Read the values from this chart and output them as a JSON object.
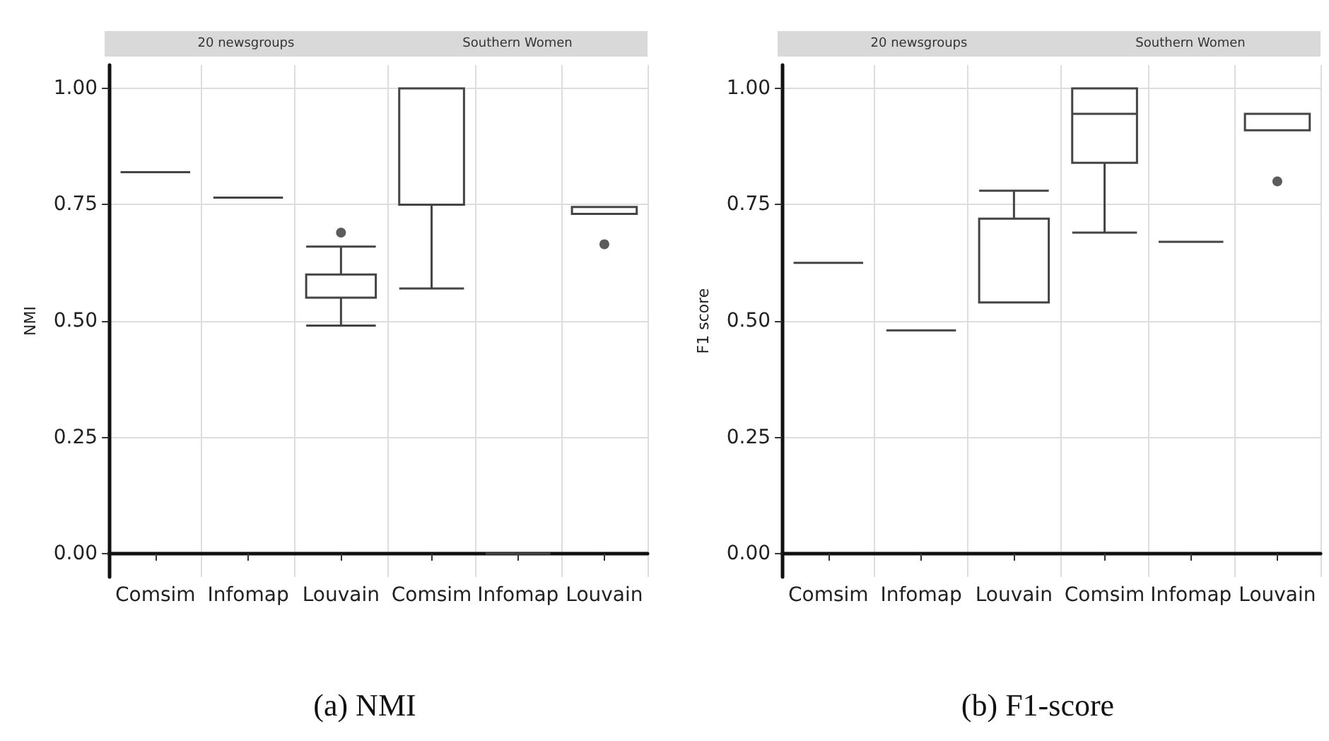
{
  "chart_data": [
    {
      "type": "box",
      "title": "20 newsgroups",
      "ylabel": "NMI",
      "categories": [
        "Comsim",
        "Infomap",
        "Louvain"
      ],
      "boxes": [
        {
          "low": 0.82,
          "q1": 0.82,
          "median": 0.82,
          "q3": 0.82,
          "high": 0.82
        },
        {
          "low": 0.765,
          "q1": 0.765,
          "median": 0.765,
          "q3": 0.765,
          "high": 0.765
        },
        {
          "low": 0.49,
          "q1": 0.55,
          "median": 0.55,
          "q3": 0.6,
          "high": 0.66,
          "outliers": [
            0.69
          ]
        }
      ],
      "ylim": [
        -0.05,
        1.05
      ],
      "yticks": [
        {
          "value": 0,
          "label": "0.00"
        },
        {
          "value": 0.25,
          "label": "0.25"
        },
        {
          "value": 0.5,
          "label": "0.50"
        },
        {
          "value": 0.75,
          "label": "0.75"
        },
        {
          "value": 1,
          "label": "1.00"
        }
      ],
      "grid": true,
      "annotations": [
        "(a) NMI"
      ]
    },
    {
      "type": "box",
      "title": "Southern Women",
      "categories": [
        "Comsim",
        "Infomap",
        "Louvain"
      ],
      "boxes": [
        {
          "low": 0.57,
          "q1": 0.75,
          "median": 0.75,
          "q3": 1.0,
          "high": 1.0
        },
        {
          "low": 0,
          "q1": 0,
          "median": 0,
          "q3": 0,
          "high": 0
        },
        {
          "low": 0.73,
          "q1": 0.73,
          "median": 0.745,
          "q3": 0.745,
          "high": 0.745,
          "outliers": [
            0.665
          ]
        }
      ],
      "ylim": [
        -0.05,
        1.05
      ],
      "yticks": [
        0,
        0.25,
        0.5,
        0.75,
        1
      ],
      "grid": true,
      "tick_labels": "x"
    },
    {
      "type": "box",
      "title": "20 newsgroups",
      "ylabel": "F1 score",
      "categories": [
        "Comsim",
        "Infomap",
        "Louvain"
      ],
      "boxes": [
        {
          "low": 0.625,
          "q1": 0.625,
          "median": 0.625,
          "q3": 0.625,
          "high": 0.625
        },
        {
          "low": 0.48,
          "q1": 0.48,
          "median": 0.48,
          "q3": 0.48,
          "high": 0.48
        },
        {
          "low": 0.54,
          "q1": 0.54,
          "median": 0.54,
          "q3": 0.72,
          "high": 0.78
        }
      ],
      "ylim": [
        -0.05,
        1.05
      ],
      "yticks": [
        {
          "value": 0,
          "label": "0.00"
        },
        {
          "value": 0.25,
          "label": "0.25"
        },
        {
          "value": 0.5,
          "label": "0.50"
        },
        {
          "value": 0.75,
          "label": "0.75"
        },
        {
          "value": 1,
          "label": "1.00"
        }
      ],
      "grid": true,
      "annotations": [
        "(b) F1-score"
      ]
    },
    {
      "type": "box",
      "title": "Southern Women",
      "categories": [
        "Comsim",
        "Infomap",
        "Louvain"
      ],
      "boxes": [
        {
          "low": 0.69,
          "q1": 0.84,
          "median": 0.945,
          "q3": 1.0,
          "high": 1.0
        },
        {
          "low": 0.67,
          "q1": 0.67,
          "median": 0.67,
          "q3": 0.67,
          "high": 0.67
        },
        {
          "low": 0.91,
          "q1": 0.91,
          "median": 0.945,
          "q3": 0.945,
          "high": 0.945,
          "outliers": [
            0.8
          ]
        }
      ],
      "ylim": [
        -0.05,
        1.05
      ],
      "yticks": [
        0,
        0.25,
        0.5,
        0.75,
        1
      ],
      "grid": true,
      "tick_labels": "x"
    }
  ]
}
